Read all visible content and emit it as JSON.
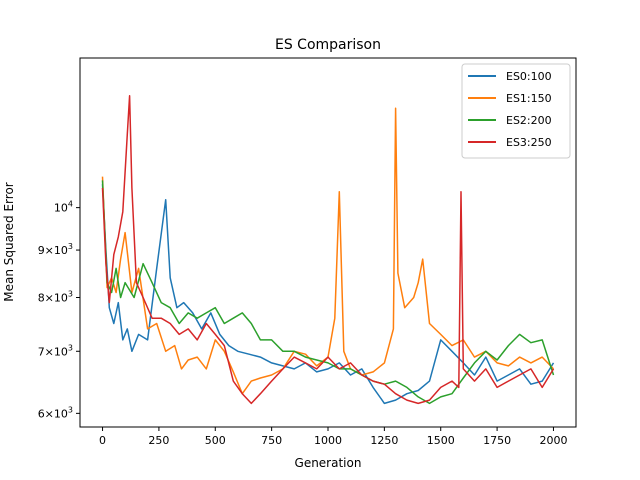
{
  "chart_data": {
    "type": "line",
    "title": "ES Comparison",
    "xlabel": "Generation",
    "ylabel": "Mean Squared Error",
    "yscale": "log",
    "xlim": [
      -100,
      2100
    ],
    "ylim": [
      5800,
      14500
    ],
    "x_ticks": [
      0,
      250,
      500,
      750,
      1000,
      1250,
      1500,
      1750,
      2000
    ],
    "x_tick_labels": [
      "0",
      "250",
      "500",
      "750",
      "1000",
      "1250",
      "1500",
      "1750",
      "2000"
    ],
    "y_ticks": [
      6000,
      7000,
      8000,
      9000,
      10000
    ],
    "y_tick_labels": [
      {
        "base": "6",
        "mant": "×10",
        "exp": "3"
      },
      {
        "base": "7",
        "mant": "×10",
        "exp": "3"
      },
      {
        "base": "8",
        "mant": "×10",
        "exp": "3"
      },
      {
        "base": "9",
        "mant": "×10",
        "exp": "3"
      },
      {
        "base": "",
        "mant": "10",
        "exp": "4"
      }
    ],
    "grid": false,
    "legend_position": "top-right",
    "series": [
      {
        "name": "ES0:100",
        "color": "#1f77b4",
        "x": [
          0,
          15,
          30,
          50,
          70,
          90,
          110,
          130,
          160,
          200,
          240,
          280,
          300,
          330,
          360,
          400,
          440,
          480,
          520,
          560,
          600,
          650,
          700,
          750,
          800,
          850,
          900,
          950,
          1000,
          1050,
          1100,
          1150,
          1200,
          1250,
          1300,
          1350,
          1400,
          1450,
          1500,
          1550,
          1600,
          1650,
          1700,
          1750,
          1800,
          1850,
          1900,
          1950,
          2000
        ],
        "y": [
          10600,
          9000,
          7800,
          7500,
          7900,
          7200,
          7400,
          7000,
          7300,
          7200,
          8600,
          10200,
          8400,
          7800,
          7900,
          7700,
          7400,
          7700,
          7300,
          7100,
          7000,
          6950,
          6900,
          6800,
          6750,
          6700,
          6800,
          6650,
          6700,
          6800,
          6600,
          6700,
          6400,
          6150,
          6200,
          6300,
          6350,
          6500,
          7200,
          7000,
          6800,
          6600,
          6900,
          6500,
          6600,
          6700,
          6450,
          6500,
          6800
        ]
      },
      {
        "name": "ES1:150",
        "color": "#ff7f0e",
        "x": [
          0,
          20,
          40,
          60,
          80,
          100,
          130,
          160,
          200,
          240,
          280,
          320,
          350,
          380,
          420,
          460,
          500,
          540,
          580,
          620,
          660,
          700,
          750,
          800,
          850,
          900,
          950,
          1000,
          1030,
          1050,
          1070,
          1100,
          1150,
          1200,
          1250,
          1290,
          1300,
          1310,
          1340,
          1380,
          1400,
          1420,
          1450,
          1500,
          1550,
          1600,
          1650,
          1700,
          1750,
          1800,
          1850,
          1900,
          1950,
          2000
        ],
        "y": [
          10800,
          8200,
          8400,
          8100,
          8800,
          9400,
          8100,
          8600,
          7400,
          7500,
          7000,
          7100,
          6700,
          6850,
          6900,
          6700,
          7200,
          7000,
          6650,
          6300,
          6500,
          6550,
          6600,
          6700,
          7000,
          6950,
          6750,
          6900,
          7600,
          10400,
          7000,
          6700,
          6600,
          6650,
          6800,
          7400,
          12800,
          8500,
          7800,
          8000,
          8300,
          8800,
          7500,
          7300,
          7100,
          7200,
          6900,
          7000,
          6800,
          6750,
          6900,
          6800,
          6900,
          6700
        ]
      },
      {
        "name": "ES2:200",
        "color": "#2ca02c",
        "x": [
          0,
          20,
          40,
          60,
          80,
          100,
          140,
          180,
          220,
          260,
          300,
          340,
          380,
          420,
          460,
          500,
          540,
          580,
          620,
          660,
          700,
          750,
          800,
          850,
          900,
          950,
          1000,
          1050,
          1100,
          1150,
          1200,
          1250,
          1300,
          1350,
          1400,
          1450,
          1500,
          1550,
          1600,
          1650,
          1700,
          1750,
          1800,
          1850,
          1900,
          1950,
          2000
        ],
        "y": [
          10700,
          8300,
          8100,
          8600,
          8000,
          8300,
          8000,
          8700,
          8300,
          7900,
          7800,
          7500,
          7700,
          7600,
          7700,
          7800,
          7500,
          7600,
          7700,
          7500,
          7200,
          7200,
          7000,
          7000,
          6900,
          6850,
          6800,
          6700,
          6700,
          6600,
          6500,
          6450,
          6500,
          6400,
          6250,
          6150,
          6250,
          6300,
          6550,
          6800,
          7000,
          6850,
          7100,
          7300,
          7150,
          7200,
          6600
        ]
      },
      {
        "name": "ES3:250",
        "color": "#d62728",
        "x": [
          0,
          15,
          30,
          50,
          70,
          90,
          110,
          120,
          130,
          150,
          180,
          220,
          260,
          300,
          340,
          380,
          420,
          460,
          500,
          540,
          580,
          620,
          660,
          700,
          750,
          800,
          850,
          900,
          950,
          1000,
          1050,
          1100,
          1150,
          1200,
          1250,
          1300,
          1350,
          1400,
          1450,
          1500,
          1550,
          1580,
          1590,
          1600,
          1650,
          1700,
          1750,
          1800,
          1850,
          1900,
          1950,
          2000
        ],
        "y": [
          10500,
          8700,
          7900,
          8900,
          9300,
          9900,
          12000,
          13200,
          10500,
          8300,
          8000,
          7600,
          7600,
          7500,
          7300,
          7400,
          7200,
          7500,
          7300,
          7100,
          6500,
          6300,
          6150,
          6300,
          6500,
          6700,
          6900,
          6800,
          6700,
          6900,
          6700,
          6800,
          6600,
          6500,
          6450,
          6300,
          6200,
          6150,
          6200,
          6400,
          6500,
          6400,
          10400,
          6700,
          6500,
          6700,
          6400,
          6500,
          6600,
          6700,
          6400,
          6700
        ]
      }
    ]
  }
}
